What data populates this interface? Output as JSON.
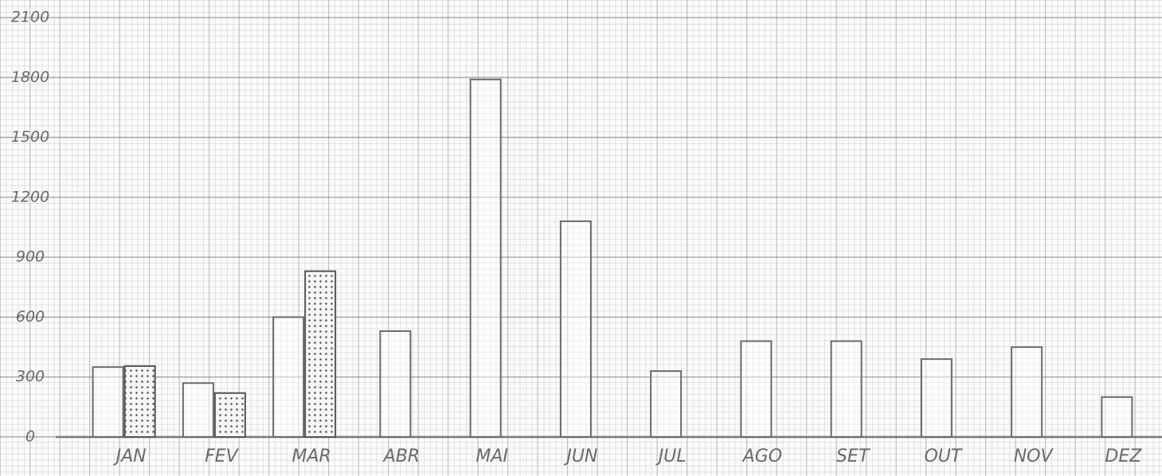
{
  "chart_data": {
    "type": "bar",
    "categories": [
      "JAN",
      "FEV",
      "MAR",
      "ABR",
      "MAI",
      "JUN",
      "JUL",
      "AGO",
      "SET",
      "OUT",
      "NOV",
      "DEZ"
    ],
    "series": [
      {
        "color": "#6b6b6b",
        "values": [
          350,
          270,
          600,
          530,
          1790,
          1080,
          330,
          480,
          480,
          390,
          450,
          200
        ]
      },
      {
        "color": "#555555",
        "values": [
          355,
          220,
          830,
          null,
          null,
          null,
          null,
          null,
          null,
          null,
          null,
          null
        ]
      }
    ],
    "ylim": [
      0,
      2100
    ],
    "yticks": [
      0,
      300,
      600,
      900,
      1200,
      1500,
      1800,
      2100
    ],
    "grid": true
  }
}
